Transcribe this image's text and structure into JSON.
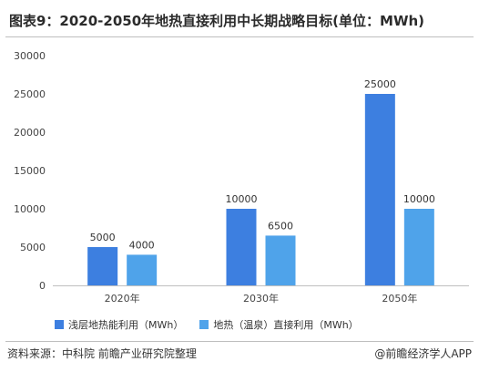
{
  "title": "图表9：2020-2050年地热直接利用中长期战略目标(单位：MWh)",
  "footer": {
    "source": "资料来源：中科院 前瞻产业研究院整理",
    "brand": "@前瞻经济学人APP"
  },
  "colors": {
    "series1": "#3d7fe0",
    "series2": "#4fa3ea"
  },
  "chart_data": {
    "type": "bar",
    "title": "图表9：2020-2050年地热直接利用中长期战略目标(单位：MWh)",
    "categories": [
      "2020年",
      "2030年",
      "2050年"
    ],
    "series": [
      {
        "name": "浅层地热能利用（MWh）",
        "values": [
          5000,
          10000,
          25000
        ]
      },
      {
        "name": "地热（温泉）直接利用（MWh）",
        "values": [
          4000,
          6500,
          10000
        ]
      }
    ],
    "ylim": [
      0,
      30000
    ],
    "yticks": [
      "0",
      "5000",
      "10000",
      "15000",
      "20000",
      "25000",
      "30000"
    ],
    "data_labels": [
      [
        "5000",
        "4000"
      ],
      [
        "10000",
        "6500"
      ],
      [
        "25000",
        "10000"
      ]
    ],
    "grid": false,
    "legend": "bottom"
  }
}
